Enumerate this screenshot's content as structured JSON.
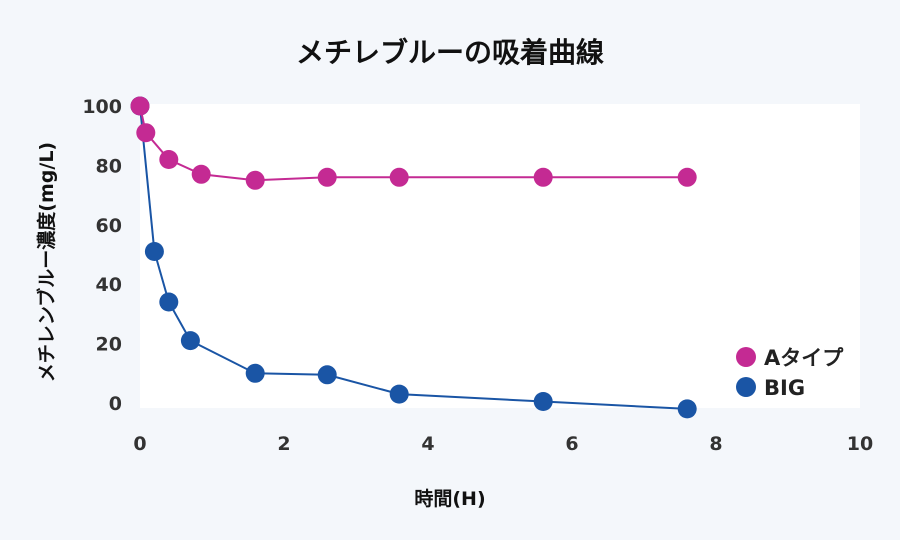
{
  "chart_data": {
    "type": "scatter",
    "title": "メチレブルーの吸着曲線",
    "xlabel": "時間(H)",
    "ylabel": "メチレンブルー濃度(mg/L)",
    "xlim": [
      0,
      10
    ],
    "ylim": [
      -2,
      100
    ],
    "x_ticks": [
      "0",
      "2",
      "4",
      "6",
      "8",
      "10"
    ],
    "y_ticks": [
      "0",
      "20",
      "40",
      "60",
      "80",
      "100"
    ],
    "grid": false,
    "legend_position": "bottom-right",
    "series": [
      {
        "name": "Aタイプ",
        "color": "#c42a93",
        "line": true,
        "points": [
          {
            "x": 0,
            "y": 100
          },
          {
            "x": 0.08,
            "y": 91
          },
          {
            "x": 0.4,
            "y": 82
          },
          {
            "x": 0.85,
            "y": 77
          },
          {
            "x": 1.6,
            "y": 75
          },
          {
            "x": 2.6,
            "y": 76
          },
          {
            "x": 3.6,
            "y": 76
          },
          {
            "x": 5.6,
            "y": 76
          },
          {
            "x": 7.6,
            "y": 76
          }
        ]
      },
      {
        "name": "BIG",
        "color": "#1a55a5",
        "line": true,
        "points": [
          {
            "x": 0,
            "y": 100
          },
          {
            "x": 0.2,
            "y": 51
          },
          {
            "x": 0.4,
            "y": 34
          },
          {
            "x": 0.7,
            "y": 21
          },
          {
            "x": 1.6,
            "y": 10
          },
          {
            "x": 2.6,
            "y": 9.5
          },
          {
            "x": 3.6,
            "y": 3
          },
          {
            "x": 5.6,
            "y": 0.5
          },
          {
            "x": 7.6,
            "y": -2
          }
        ]
      }
    ]
  }
}
